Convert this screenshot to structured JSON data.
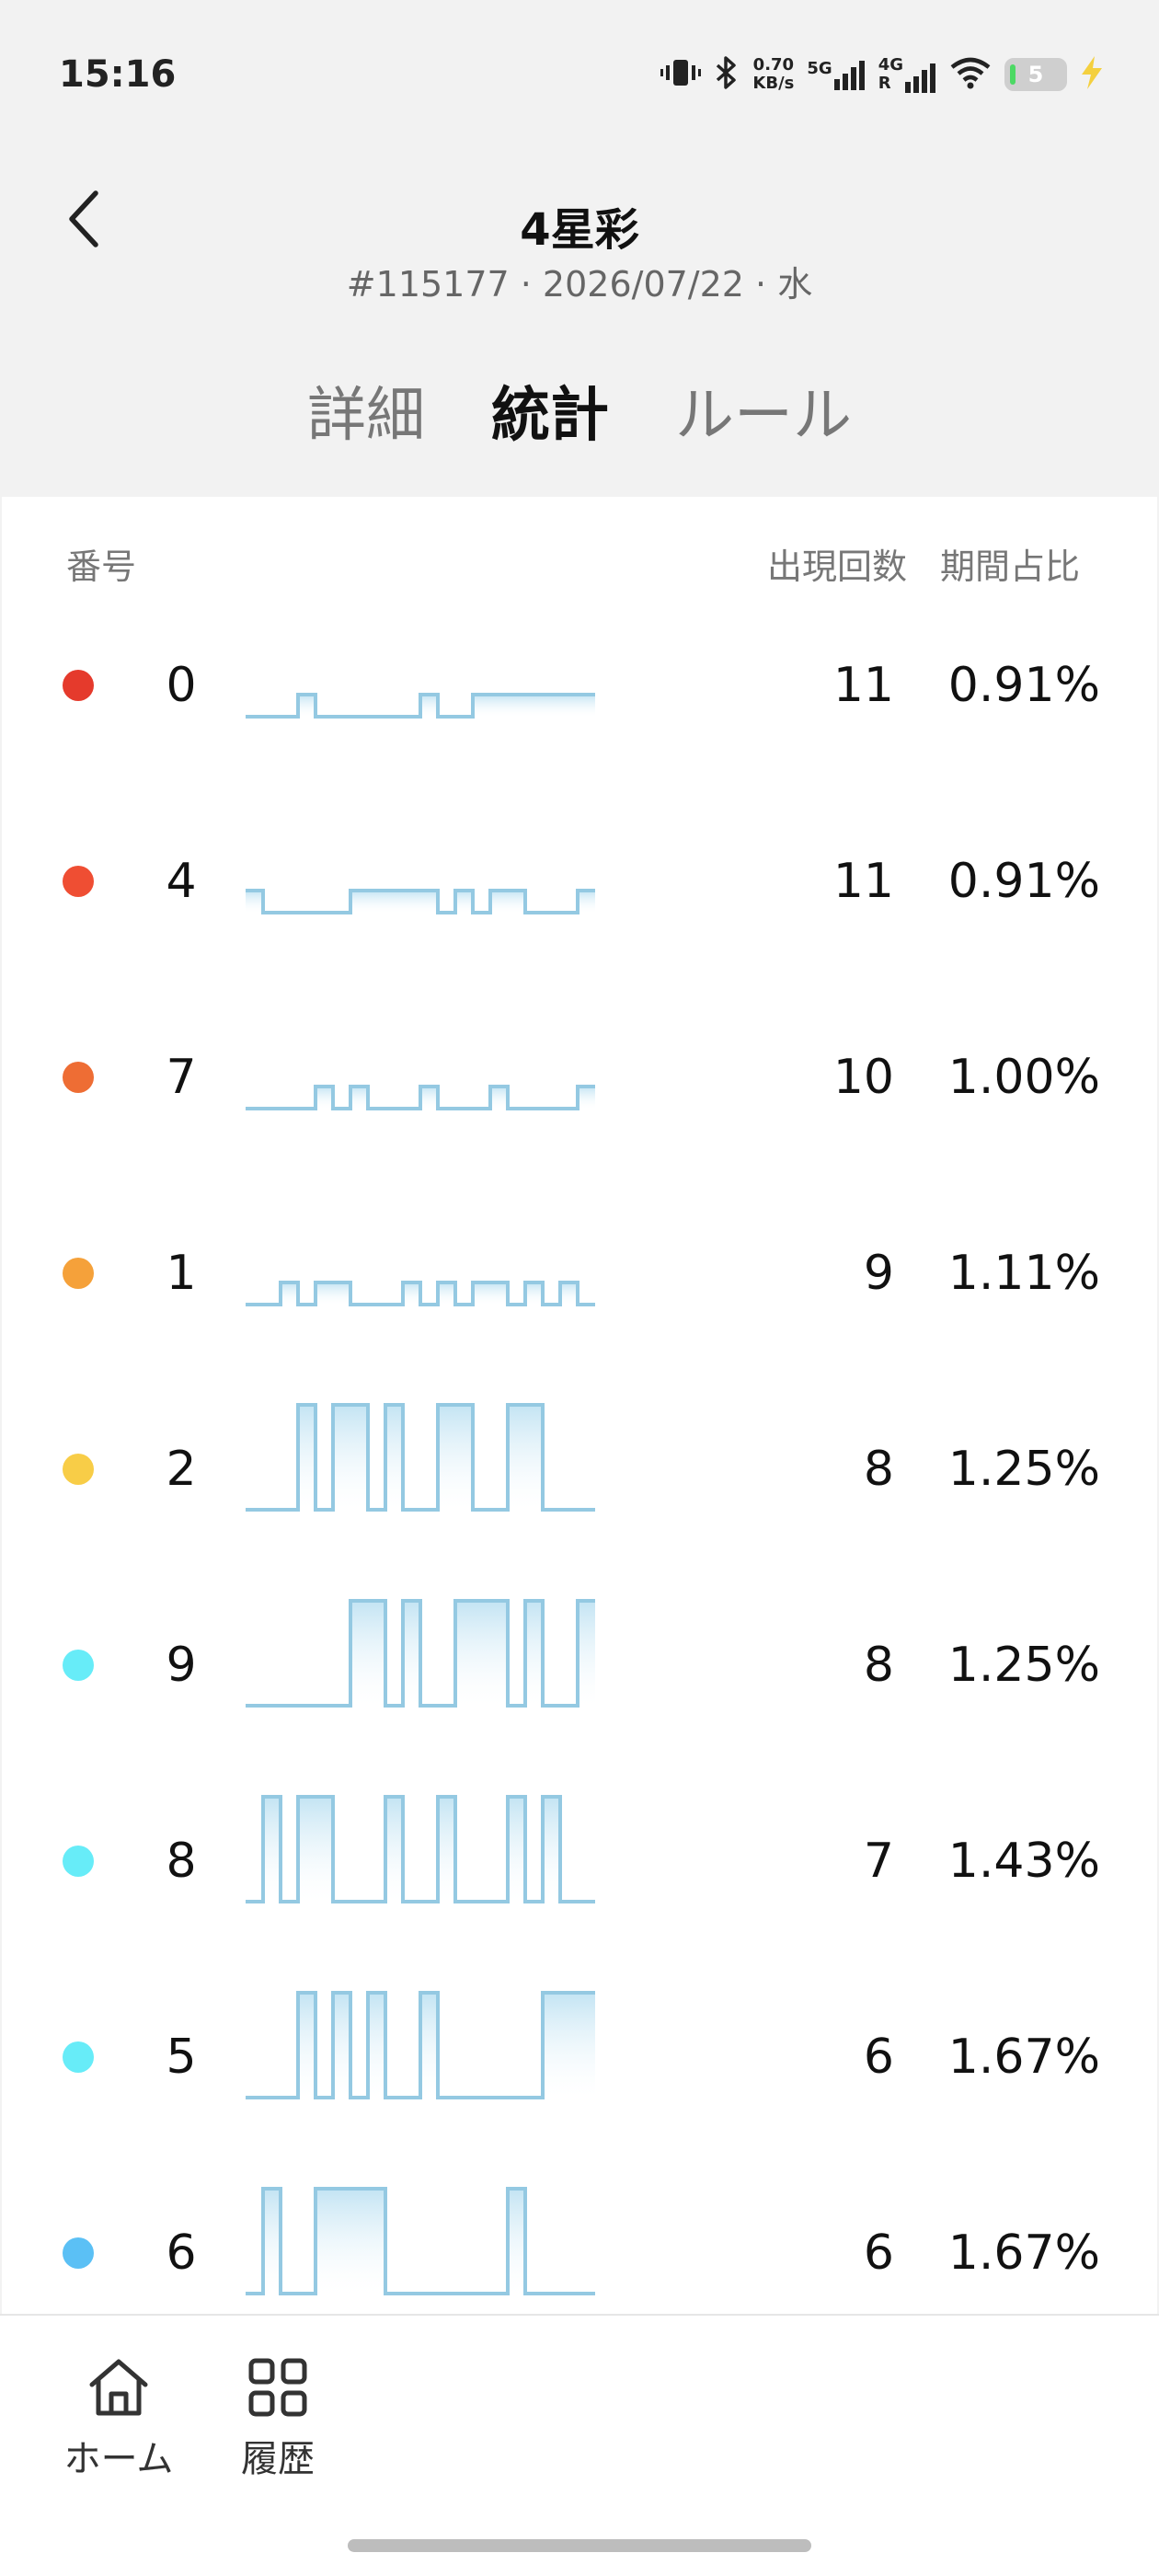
{
  "status_bar": {
    "time": "15:16",
    "speed_value": "0.70",
    "speed_unit": "KB/s",
    "net1": "5G",
    "net2": "4G",
    "net2_sub": "R",
    "battery": "5"
  },
  "header": {
    "title": "4星彩",
    "subtitle": "#115177 · 2026/07/22 · 水",
    "tabs": [
      {
        "label": "詳細",
        "active": false
      },
      {
        "label": "統計",
        "active": true
      },
      {
        "label": "ルール",
        "active": false
      }
    ]
  },
  "table": {
    "col_number": "番号",
    "col_count": "出現回数",
    "col_ratio": "期間占比",
    "rows": [
      {
        "number": "0",
        "count": "11",
        "ratio": "0.91%",
        "color": "#e53a2c",
        "spark": [
          0,
          0,
          0,
          1,
          0,
          0,
          0,
          0,
          0,
          0,
          1,
          0,
          0,
          1,
          1,
          1,
          1,
          1,
          1,
          1
        ]
      },
      {
        "number": "4",
        "count": "11",
        "ratio": "0.91%",
        "color": "#ef4e33",
        "spark": [
          1,
          0,
          0,
          0,
          0,
          0,
          1,
          1,
          1,
          1,
          1,
          0,
          1,
          0,
          1,
          1,
          0,
          0,
          0,
          1
        ]
      },
      {
        "number": "7",
        "count": "10",
        "ratio": "1.00%",
        "color": "#ee6d34",
        "spark": [
          0,
          0,
          0,
          0,
          1,
          0,
          1,
          0,
          0,
          0,
          1,
          0,
          0,
          0,
          1,
          0,
          0,
          0,
          0,
          1
        ]
      },
      {
        "number": "1",
        "count": "9",
        "ratio": "1.11%",
        "color": "#f5a13a",
        "spark": [
          0,
          0,
          1,
          0,
          1,
          1,
          0,
          0,
          0,
          1,
          0,
          1,
          0,
          1,
          1,
          0,
          1,
          0,
          1,
          0
        ]
      },
      {
        "number": "2",
        "count": "8",
        "ratio": "1.25%",
        "color": "#f8cd47",
        "spark": [
          0,
          0,
          0,
          1,
          0,
          1,
          1,
          0,
          1,
          0,
          0,
          1,
          1,
          0,
          0,
          1,
          1,
          0,
          0,
          0
        ]
      },
      {
        "number": "9",
        "count": "8",
        "ratio": "1.25%",
        "color": "#67ecf8",
        "spark": [
          0,
          0,
          0,
          0,
          0,
          0,
          1,
          1,
          0,
          1,
          0,
          0,
          1,
          1,
          1,
          0,
          1,
          0,
          0,
          1
        ]
      },
      {
        "number": "8",
        "count": "7",
        "ratio": "1.43%",
        "color": "#67ecf8",
        "spark": [
          0,
          1,
          0,
          1,
          1,
          0,
          0,
          0,
          1,
          0,
          0,
          1,
          0,
          0,
          0,
          1,
          0,
          1,
          0,
          0
        ]
      },
      {
        "number": "5",
        "count": "6",
        "ratio": "1.67%",
        "color": "#67ecf8",
        "spark": [
          0,
          0,
          0,
          1,
          0,
          1,
          0,
          1,
          0,
          0,
          1,
          0,
          0,
          0,
          0,
          0,
          0,
          1,
          1,
          1
        ]
      },
      {
        "number": "6",
        "count": "6",
        "ratio": "1.67%",
        "color": "#5bc0f5",
        "spark": [
          0,
          1,
          0,
          0,
          1,
          1,
          1,
          1,
          0,
          0,
          0,
          0,
          0,
          0,
          0,
          1,
          0,
          0,
          0,
          0
        ]
      }
    ]
  },
  "bottom_nav": {
    "home_label": "ホーム",
    "history_label": "履歴"
  }
}
